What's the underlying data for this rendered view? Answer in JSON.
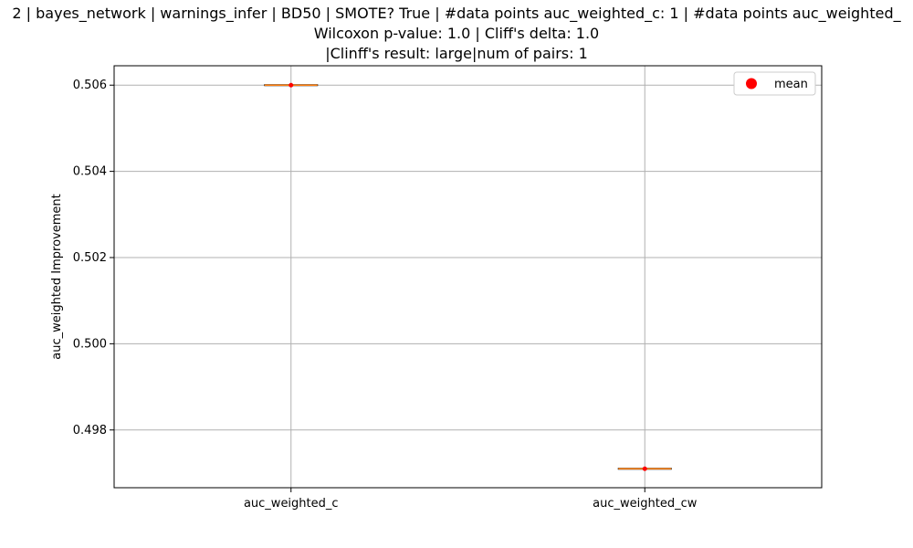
{
  "chart_data": {
    "type": "box",
    "title_lines": [
      "2 | bayes_network | warnings_infer | BD50 | SMOTE? True | #data points auc_weighted_c: 1 | #data points auc_weighted_",
      "Wilcoxon p-value: 1.0 | Cliff's delta: 1.0",
      "|Clinff's result: large|num of pairs: 1"
    ],
    "categories": [
      "auc_weighted_c",
      "auc_weighted_cw"
    ],
    "values": [
      0.506,
      0.4971
    ],
    "means": [
      0.506,
      0.4971
    ],
    "ylabel": "auc_weighted Improvement",
    "xlabel": "",
    "ylim": [
      0.49666,
      0.50645
    ],
    "yticks": [
      "0.498",
      "0.500",
      "0.502",
      "0.504",
      "0.506"
    ],
    "grid": true,
    "legend": {
      "position": "top-right",
      "entries": [
        {
          "label": "mean",
          "color": "#ff0000",
          "marker": "circle"
        }
      ]
    },
    "colors": {
      "median": "#ff7f0e",
      "mean": "#ff0000",
      "grid": "#b0b0b0"
    }
  }
}
